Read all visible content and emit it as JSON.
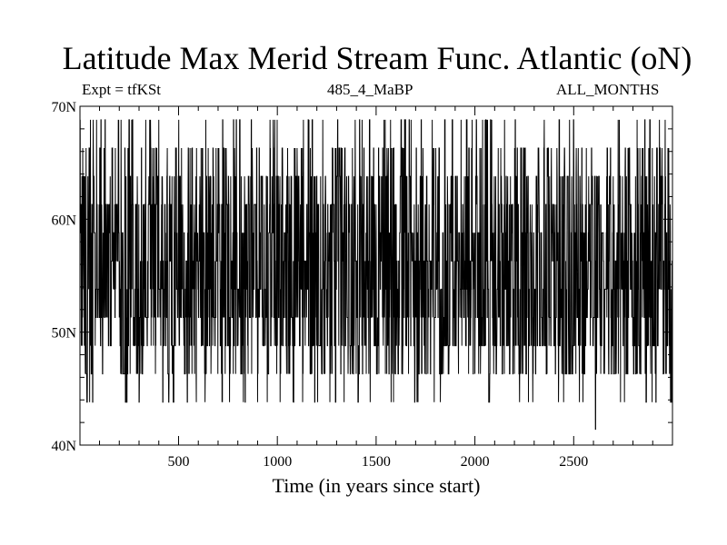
{
  "chart_data": {
    "type": "line",
    "title": "Latitude Max Merid Stream Func. Atlantic (oN)",
    "subtitle_left": "Expt = tfKSt",
    "subtitle_center": "485_4_MaBP",
    "subtitle_right": "ALL_MONTHS",
    "xlabel": "Time (in years since start)",
    "ylabel": "",
    "xlim": [
      1,
      3000
    ],
    "ylim": [
      40,
      70
    ],
    "x_ticks": [
      500,
      1000,
      1500,
      2000,
      2500
    ],
    "x_tick_labels": [
      "500",
      "1000",
      "1500",
      "2000",
      "2500"
    ],
    "y_ticks": [
      40,
      50,
      60,
      70
    ],
    "y_tick_labels": [
      "40N",
      "50N",
      "60N",
      "70N"
    ],
    "grid": false,
    "series": [
      {
        "color": "#000000",
        "x_start": 1,
        "x_step": 1,
        "y_levels": [
          41.4,
          43.8,
          46.3,
          48.8,
          51.3,
          53.8,
          56.3,
          58.8,
          61.3,
          63.8,
          66.3,
          68.8
        ],
        "y_typical_range": [
          48.8,
          68.8
        ],
        "y_min": 41.4,
        "y_min_x": 2610,
        "y_max": 68.8
      }
    ]
  }
}
